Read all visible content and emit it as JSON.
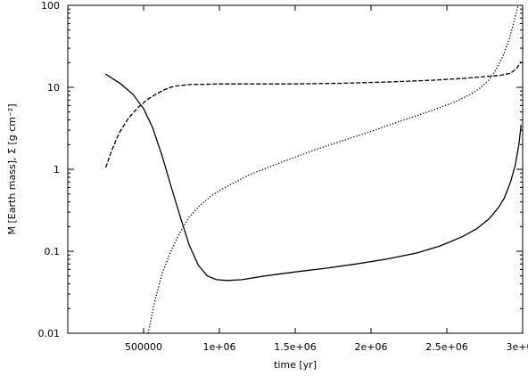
{
  "chart_data": {
    "type": "line",
    "title": "",
    "xlabel": "time [yr]",
    "ylabel": "M [Earth mass], Σ [g cm⁻²]",
    "xlim": [
      0,
      3000000
    ],
    "ylim": [
      0.01,
      100
    ],
    "yscale": "log",
    "grid": false,
    "x_ticks": [
      500000,
      1000000,
      1500000,
      2000000,
      2500000,
      3000000
    ],
    "x_tick_labels": [
      "500000",
      "1e+06",
      "1.5e+06",
      "2e+06",
      "2.5e+06",
      "3e+06"
    ],
    "y_ticks": [
      0.01,
      0.1,
      1,
      10,
      100
    ],
    "y_tick_labels": [
      "0.01",
      "0.1",
      "1",
      "10",
      "100"
    ],
    "series": [
      {
        "style": "solid",
        "x": [
          250000,
          350000,
          430000,
          500000,
          560000,
          620000,
          680000,
          740000,
          800000,
          860000,
          920000,
          980000,
          1050000,
          1150000,
          1300000,
          1500000,
          1700000,
          1900000,
          2100000,
          2300000,
          2450000,
          2600000,
          2700000,
          2780000,
          2840000,
          2880000,
          2920000,
          2950000,
          2975000,
          2990000
        ],
        "y": [
          14.5,
          11,
          8.2,
          5.5,
          3.2,
          1.5,
          0.63,
          0.27,
          0.12,
          0.068,
          0.05,
          0.045,
          0.044,
          0.045,
          0.05,
          0.056,
          0.062,
          0.07,
          0.08,
          0.095,
          0.115,
          0.15,
          0.19,
          0.25,
          0.34,
          0.45,
          0.7,
          1.1,
          2.0,
          3.5
        ]
      },
      {
        "style": "dashed",
        "x": [
          250000,
          290000,
          340000,
          400000,
          460000,
          520000,
          580000,
          640000,
          700000,
          800000,
          900000,
          1000000,
          1200000,
          1500000,
          1800000,
          2100000,
          2400000,
          2600000,
          2750000,
          2850000,
          2920000,
          2960000,
          2990000
        ],
        "y": [
          1.05,
          1.7,
          2.8,
          4.2,
          5.6,
          7.0,
          8.2,
          9.4,
          10.3,
          10.8,
          10.9,
          11.0,
          11.0,
          11.0,
          11.2,
          11.6,
          12.2,
          12.8,
          13.5,
          14.0,
          14.8,
          17.0,
          20.5
        ]
      },
      {
        "style": "dotted",
        "x": [
          530000,
          570000,
          620000,
          680000,
          740000,
          800000,
          870000,
          950000,
          1050000,
          1200000,
          1400000,
          1600000,
          1800000,
          2000000,
          2200000,
          2400000,
          2550000,
          2650000,
          2720000,
          2780000,
          2830000,
          2870000,
          2910000,
          2940000,
          2970000
        ],
        "y": [
          0.01,
          0.023,
          0.052,
          0.1,
          0.17,
          0.26,
          0.36,
          0.48,
          0.62,
          0.86,
          1.2,
          1.65,
          2.2,
          2.9,
          3.9,
          5.2,
          6.6,
          8.1,
          9.8,
          12.5,
          17,
          24,
          38,
          60,
          100
        ]
      }
    ]
  }
}
